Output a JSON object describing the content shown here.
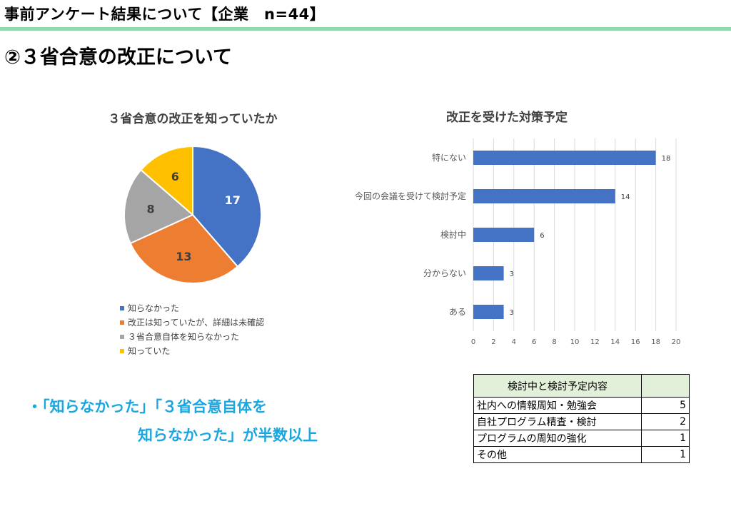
{
  "header": {
    "title": "事前アンケート結果について【企業　n=44】"
  },
  "section": {
    "title": "②３省合意の改正について"
  },
  "colors": {
    "header_rule": "#92D9B0",
    "note": "#1AA6E0",
    "table_header_bg": "#E2EFD9"
  },
  "chart_data": [
    {
      "type": "pie",
      "title": "３省合意の改正を知っていたか",
      "categories": [
        "知らなかった",
        "改正は知っていたが、詳細は未確認",
        "３省合意自体を知らなかった",
        "知っていた"
      ],
      "values": [
        17,
        13,
        8,
        6
      ],
      "colors": [
        "#4472C4",
        "#ED7D31",
        "#A5A5A5",
        "#FFC000"
      ],
      "legend_position": "bottom"
    },
    {
      "type": "bar",
      "orientation": "horizontal",
      "title": "改正を受けた対策予定",
      "categories": [
        "特にない",
        "今回の会議を受けて検討予定",
        "検討中",
        "分からない",
        "ある"
      ],
      "values": [
        18,
        14,
        6,
        3,
        3
      ],
      "xlim": [
        0,
        20
      ],
      "xticks": [
        "0",
        "2",
        "4",
        "6",
        "8",
        "10",
        "12",
        "14",
        "16",
        "18",
        "20"
      ],
      "color": "#4472C4",
      "grid": true
    }
  ],
  "notes": {
    "line1": "・「知らなかった」「３省合意自体を",
    "line2": "知らなかった」が半数以上"
  },
  "table": {
    "header": "検討中と検討予定内容",
    "header_value": "",
    "rows": [
      {
        "label": "社内への情報周知・勉強会",
        "value": "5"
      },
      {
        "label": "自社プログラム精査・検討",
        "value": "2"
      },
      {
        "label": "プログラムの周知の強化",
        "value": "1"
      },
      {
        "label": "その他",
        "value": "1"
      }
    ]
  }
}
